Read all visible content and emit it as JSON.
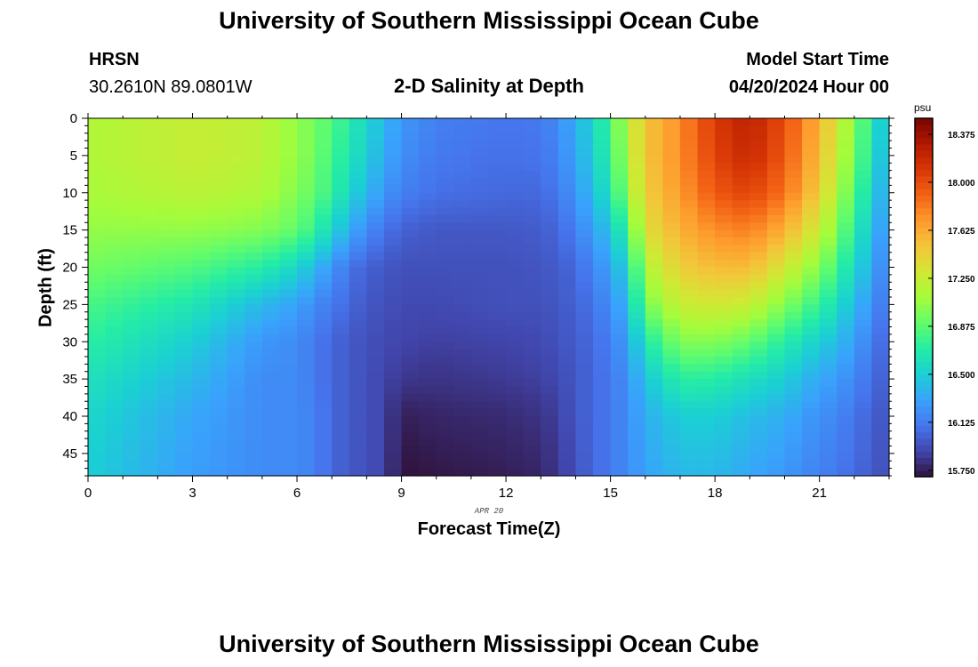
{
  "page": {
    "title_top": "University of Southern Mississippi Ocean Cube",
    "title_bottom": "University of Southern Mississippi Ocean Cube",
    "station": "HRSN",
    "coords": "30.2610N  89.0801W",
    "model_label": "Model Start Time",
    "model_time": "04/20/2024 Hour 00"
  },
  "chart_data": {
    "type": "heatmap",
    "title": "2-D Salinity at Depth",
    "xlabel": "Forecast Time(Z)",
    "ylabel": "Depth (ft)",
    "date_label": "APR 20",
    "colorbar_unit": "psu",
    "xlim": [
      0,
      23
    ],
    "ylim": [
      0,
      48
    ],
    "y_inverted": true,
    "x_ticks": [
      "0",
      "3",
      "6",
      "9",
      "12",
      "15",
      "18",
      "21"
    ],
    "y_ticks": [
      "0",
      "5",
      "10",
      "15",
      "20",
      "25",
      "30",
      "35",
      "40",
      "45"
    ],
    "colorbar_range": [
      15.7,
      18.5
    ],
    "colorbar_ticks": [
      "15.750",
      "16.125",
      "16.500",
      "16.875",
      "17.250",
      "17.625",
      "18.000",
      "18.375"
    ],
    "colormap": [
      "#30123b",
      "#4145ab",
      "#4675ed",
      "#39a2fc",
      "#1bcfd4",
      "#24eca6",
      "#61fc6c",
      "#a4fc3b",
      "#d1e834",
      "#f3c63a",
      "#fe9b2d",
      "#f36315",
      "#d93806",
      "#b11901",
      "#7a0402"
    ],
    "grid": false,
    "profile_depths_ft": [
      0,
      5,
      10,
      15,
      20,
      25,
      30,
      35,
      40,
      48
    ],
    "profiles": [
      {
        "hour": 0,
        "salinity_psu": [
          17.15,
          17.15,
          17.12,
          17.05,
          16.95,
          16.82,
          16.72,
          16.62,
          16.55,
          16.5
        ]
      },
      {
        "hour": 3,
        "salinity_psu": [
          17.25,
          17.25,
          17.2,
          17.05,
          16.85,
          16.65,
          16.5,
          16.4,
          16.32,
          16.28
        ]
      },
      {
        "hour": 5,
        "salinity_psu": [
          17.2,
          17.2,
          17.15,
          17.0,
          16.7,
          16.4,
          16.25,
          16.2,
          16.2,
          16.2
        ]
      },
      {
        "hour": 6,
        "salinity_psu": [
          17.05,
          17.05,
          17.0,
          16.9,
          16.55,
          16.3,
          16.2,
          16.2,
          16.2,
          16.2
        ]
      },
      {
        "hour": 6.5,
        "salinity_psu": [
          16.95,
          16.95,
          16.9,
          16.75,
          16.4,
          16.2,
          16.12,
          16.12,
          16.15,
          16.15
        ]
      },
      {
        "hour": 7,
        "salinity_psu": [
          16.85,
          16.8,
          16.75,
          16.55,
          16.25,
          16.12,
          16.05,
          16.05,
          16.05,
          16.05
        ]
      },
      {
        "hour": 7.5,
        "salinity_psu": [
          16.7,
          16.65,
          16.55,
          16.35,
          16.1,
          16.05,
          15.98,
          15.98,
          15.98,
          15.98
        ]
      },
      {
        "hour": 8,
        "salinity_psu": [
          16.55,
          16.5,
          16.4,
          16.2,
          16.02,
          15.98,
          15.95,
          15.95,
          15.95,
          15.95
        ]
      },
      {
        "hour": 8.5,
        "salinity_psu": [
          16.4,
          16.35,
          16.25,
          16.1,
          15.98,
          15.95,
          15.92,
          15.9,
          15.9,
          15.9
        ]
      },
      {
        "hour": 9,
        "salinity_psu": [
          16.25,
          16.22,
          16.15,
          16.02,
          15.95,
          15.92,
          15.9,
          15.85,
          15.75,
          15.7
        ]
      },
      {
        "hour": 10,
        "salinity_psu": [
          16.15,
          16.12,
          16.08,
          15.98,
          15.95,
          15.92,
          15.88,
          15.83,
          15.78,
          15.72
        ]
      },
      {
        "hour": 12,
        "salinity_psu": [
          16.1,
          16.08,
          16.05,
          15.98,
          15.95,
          15.95,
          15.9,
          15.86,
          15.8,
          15.75
        ]
      },
      {
        "hour": 13,
        "salinity_psu": [
          16.12,
          16.1,
          16.05,
          16.0,
          15.97,
          15.95,
          15.92,
          15.88,
          15.83,
          15.78
        ]
      },
      {
        "hour": 13.5,
        "salinity_psu": [
          16.2,
          16.18,
          16.12,
          16.05,
          16.0,
          15.98,
          15.95,
          15.92,
          15.88,
          15.85
        ]
      },
      {
        "hour": 14,
        "salinity_psu": [
          16.35,
          16.32,
          16.25,
          16.15,
          16.05,
          16.02,
          16.0,
          15.98,
          15.98,
          15.95
        ]
      },
      {
        "hour": 14.5,
        "salinity_psu": [
          16.55,
          16.5,
          16.42,
          16.3,
          16.18,
          16.1,
          16.05,
          16.05,
          16.05,
          16.05
        ]
      },
      {
        "hour": 15,
        "salinity_psu": [
          16.8,
          16.75,
          16.65,
          16.45,
          16.3,
          16.22,
          16.15,
          16.12,
          16.12,
          16.12
        ]
      },
      {
        "hour": 15.5,
        "salinity_psu": [
          17.2,
          17.15,
          17.05,
          16.8,
          16.55,
          16.4,
          16.28,
          16.22,
          16.2,
          16.2
        ]
      },
      {
        "hour": 16,
        "salinity_psu": [
          17.5,
          17.5,
          17.45,
          17.35,
          17.15,
          16.95,
          16.65,
          16.45,
          16.35,
          16.3
        ]
      },
      {
        "hour": 17,
        "salinity_psu": [
          17.75,
          17.75,
          17.7,
          17.6,
          17.45,
          17.25,
          17.0,
          16.72,
          16.5,
          16.4
        ]
      },
      {
        "hour": 18,
        "salinity_psu": [
          18.1,
          18.05,
          17.95,
          17.75,
          17.55,
          17.3,
          17.0,
          16.7,
          16.5,
          16.4
        ]
      },
      {
        "hour": 19,
        "salinity_psu": [
          18.25,
          18.2,
          18.05,
          17.8,
          17.55,
          17.25,
          16.9,
          16.6,
          16.42,
          16.32
        ]
      },
      {
        "hour": 20,
        "salinity_psu": [
          18.0,
          17.95,
          17.85,
          17.6,
          17.3,
          17.0,
          16.7,
          16.5,
          16.35,
          16.25
        ]
      },
      {
        "hour": 21,
        "salinity_psu": [
          17.6,
          17.55,
          17.45,
          17.25,
          17.0,
          16.75,
          16.5,
          16.32,
          16.22,
          16.15
        ]
      },
      {
        "hour": 21.5,
        "salinity_psu": [
          17.3,
          17.25,
          17.15,
          17.0,
          16.8,
          16.6,
          16.42,
          16.28,
          16.18,
          16.12
        ]
      },
      {
        "hour": 22,
        "salinity_psu": [
          17.0,
          16.95,
          16.85,
          16.7,
          16.55,
          16.4,
          16.28,
          16.18,
          16.1,
          16.05
        ]
      },
      {
        "hour": 22.5,
        "salinity_psu": [
          16.7,
          16.65,
          16.55,
          16.45,
          16.35,
          16.25,
          16.15,
          16.08,
          16.02,
          16.0
        ]
      },
      {
        "hour": 23,
        "salinity_psu": [
          16.35,
          16.3,
          16.25,
          16.18,
          16.1,
          16.05,
          16.0,
          15.98,
          15.95,
          15.92
        ]
      }
    ]
  }
}
